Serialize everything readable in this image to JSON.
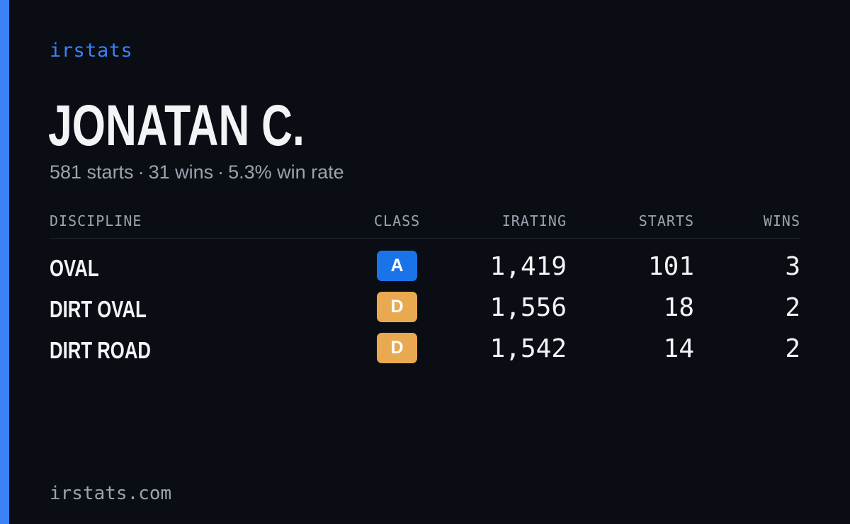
{
  "brand": "irstats",
  "player": {
    "name": "JONATAN C.",
    "starts": "581 starts",
    "wins": "31 wins",
    "win_rate": "5.3% win rate",
    "separator": "·"
  },
  "table": {
    "headers": {
      "discipline": "DISCIPLINE",
      "class": "CLASS",
      "irating": "IRATING",
      "starts": "STARTS",
      "wins": "WINS"
    },
    "rows": [
      {
        "discipline": "OVAL",
        "class": "A",
        "class_color": "#1a73e8",
        "irating": "1,419",
        "starts": "101",
        "wins": "3"
      },
      {
        "discipline": "DIRT OVAL",
        "class": "D",
        "class_color": "#e8a951",
        "irating": "1,556",
        "starts": "18",
        "wins": "2"
      },
      {
        "discipline": "DIRT ROAD",
        "class": "D",
        "class_color": "#e8a951",
        "irating": "1,542",
        "starts": "14",
        "wins": "2"
      }
    ]
  },
  "footer": "irstats.com",
  "colors": {
    "background": "#0a0d14",
    "accent": "#3b82f6",
    "text_primary": "#f3f4f6",
    "text_muted": "#9ca3af"
  }
}
